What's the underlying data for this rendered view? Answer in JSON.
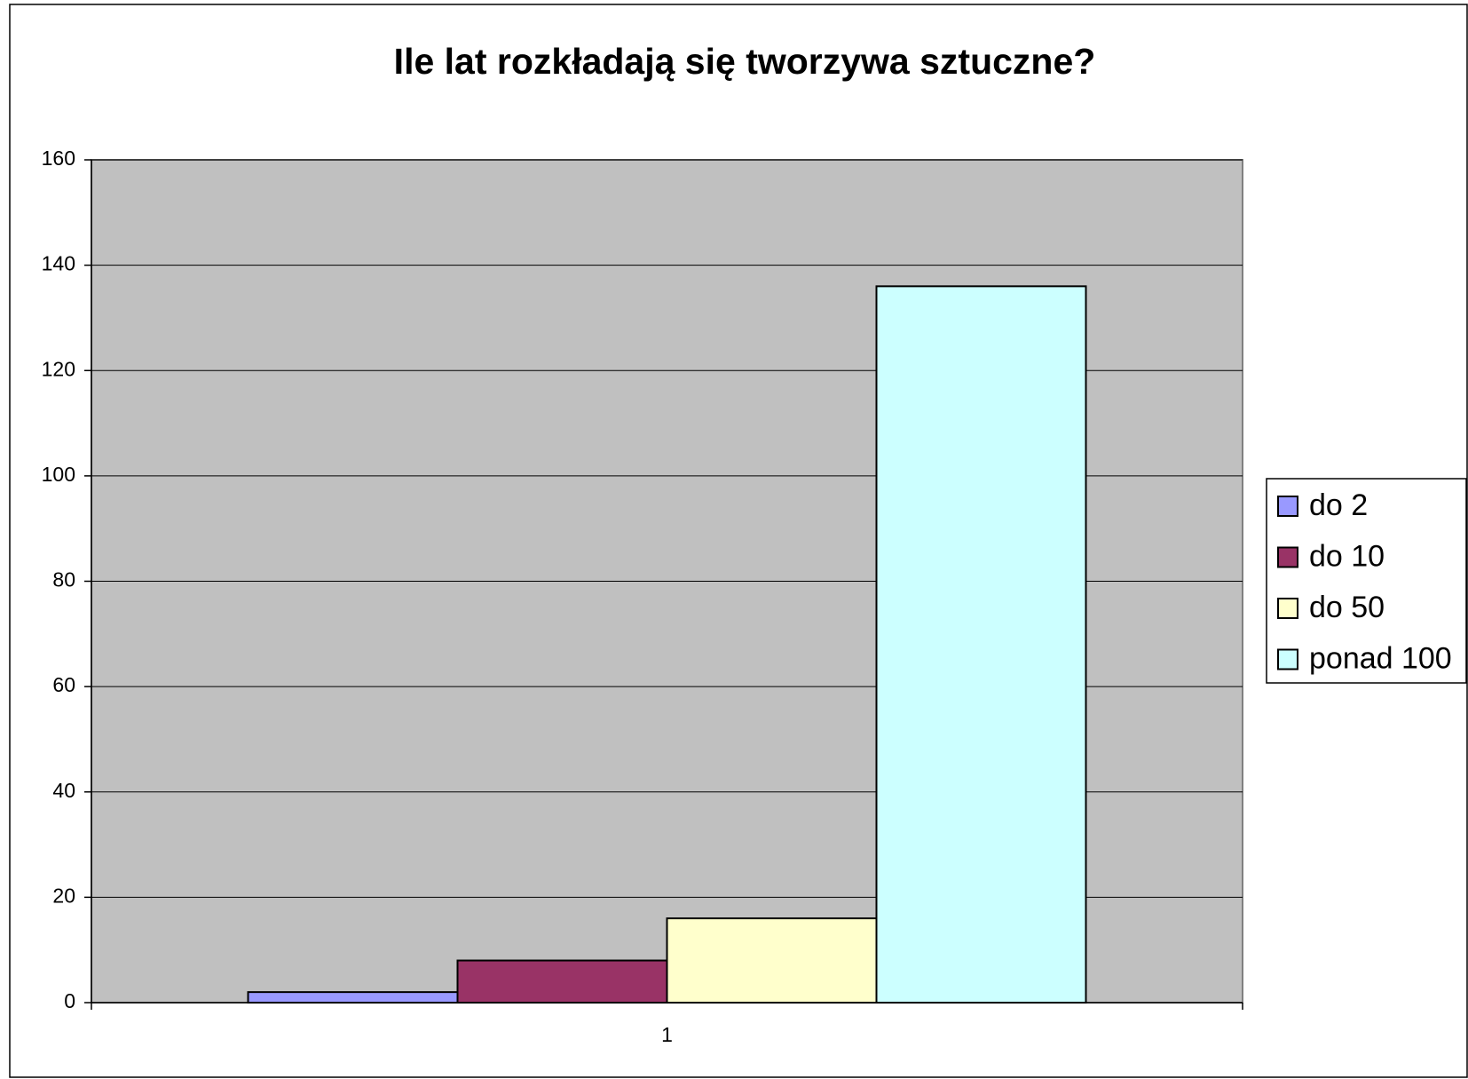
{
  "chart_data": {
    "type": "bar",
    "title": "Ile lat rozkładają się tworzywa sztuczne?",
    "categories": [
      "1"
    ],
    "series": [
      {
        "name": "do 2",
        "color": "#9999ff",
        "values": [
          2
        ]
      },
      {
        "name": "do 10",
        "color": "#993366",
        "values": [
          8
        ]
      },
      {
        "name": "do 50",
        "color": "#ffffcc",
        "values": [
          16
        ]
      },
      {
        "name": "ponad 100",
        "color": "#ccffff",
        "values": [
          136
        ]
      }
    ],
    "ylim": [
      0,
      160
    ],
    "yticks": [
      0,
      20,
      40,
      60,
      80,
      100,
      120,
      140,
      160
    ],
    "grid": true,
    "plot_background": "#c0c0c0",
    "legend": "right"
  }
}
